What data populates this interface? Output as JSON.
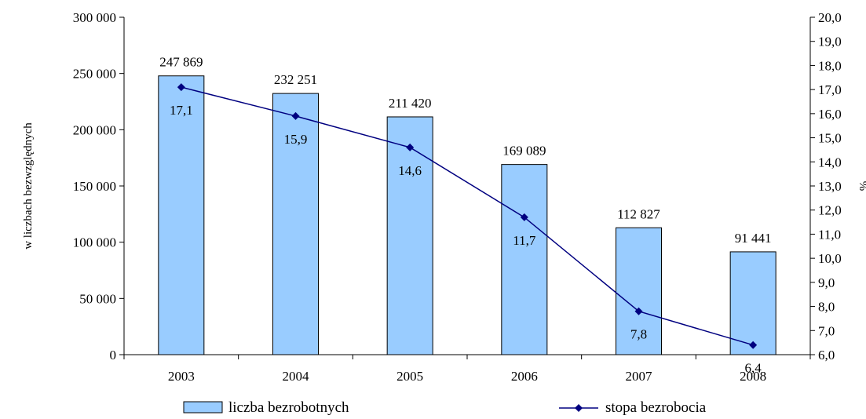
{
  "chart_data": {
    "type": "bar",
    "categories": [
      "2003",
      "2004",
      "2005",
      "2006",
      "2007",
      "2008"
    ],
    "series": [
      {
        "name": "liczba bezrobotnych",
        "type": "bar",
        "axis": "left",
        "values": [
          247869,
          232251,
          211420,
          169089,
          112827,
          91441
        ],
        "labels": [
          "247 869",
          "232 251",
          "211 420",
          "169 089",
          "112 827",
          "91 441"
        ],
        "fill_color": "#99CCFF",
        "stroke_color": "#000000"
      },
      {
        "name": "stopa bezrobocia",
        "type": "line",
        "axis": "right",
        "values": [
          17.1,
          15.9,
          14.6,
          11.7,
          7.8,
          6.4
        ],
        "labels": [
          "17,1",
          "15,9",
          "14,6",
          "11,7",
          "7,8",
          "6,4"
        ],
        "color": "#000080",
        "marker": "diamond"
      }
    ],
    "y_left": {
      "label": "w liczbach bezwzględnych",
      "ylim": [
        0,
        300000
      ],
      "ticks": [
        0,
        50000,
        100000,
        150000,
        200000,
        250000,
        300000
      ],
      "tick_labels": [
        "0",
        "50 000",
        "100 000",
        "150 000",
        "200 000",
        "250 000",
        "300 000"
      ]
    },
    "y_right": {
      "label": "%",
      "ylim": [
        6.0,
        20.0
      ],
      "ticks": [
        6,
        7,
        8,
        9,
        10,
        11,
        12,
        13,
        14,
        15,
        16,
        17,
        18,
        19,
        20
      ],
      "tick_labels": [
        "6,0",
        "7,0",
        "8,0",
        "9,0",
        "10,0",
        "11,0",
        "12,0",
        "13,0",
        "14,0",
        "15,0",
        "16,0",
        "17,0",
        "18,0",
        "19,0",
        "20,0"
      ]
    },
    "legend": {
      "position": "bottom",
      "entries": [
        "liczba bezrobotnych",
        "stopa bezrobocia"
      ]
    },
    "grid": false
  }
}
